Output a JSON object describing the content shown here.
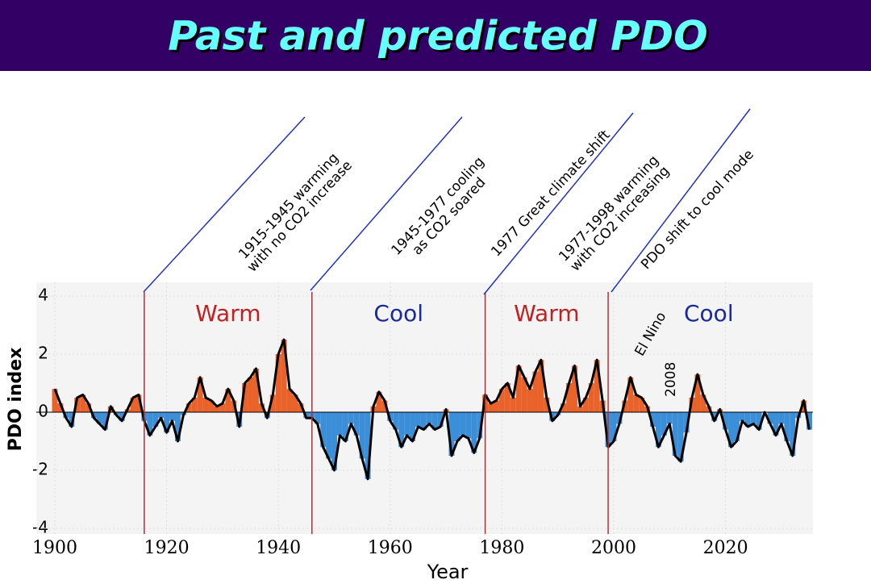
{
  "slide_title": "Past and predicted PDO",
  "chart_data": {
    "type": "bar",
    "ylabel": "PDO index",
    "xlabel": "Year",
    "x": [
      1900,
      1901,
      1902,
      1903,
      1904,
      1905,
      1906,
      1907,
      1908,
      1909,
      1910,
      1911,
      1912,
      1913,
      1914,
      1915,
      1916,
      1917,
      1918,
      1919,
      1920,
      1921,
      1922,
      1923,
      1924,
      1925,
      1926,
      1927,
      1928,
      1929,
      1930,
      1931,
      1932,
      1933,
      1934,
      1935,
      1936,
      1937,
      1938,
      1939,
      1940,
      1941,
      1942,
      1943,
      1944,
      1945,
      1946,
      1947,
      1948,
      1949,
      1950,
      1951,
      1952,
      1953,
      1954,
      1955,
      1956,
      1957,
      1958,
      1959,
      1960,
      1961,
      1962,
      1963,
      1964,
      1965,
      1966,
      1967,
      1968,
      1969,
      1970,
      1971,
      1972,
      1973,
      1974,
      1975,
      1976,
      1977,
      1978,
      1979,
      1980,
      1981,
      1982,
      1983,
      1984,
      1985,
      1986,
      1987,
      1988,
      1989,
      1990,
      1991,
      1992,
      1993,
      1994,
      1995,
      1996,
      1997,
      1998,
      1999,
      2000,
      2001,
      2002,
      2003,
      2004,
      2005,
      2006,
      2007,
      2008,
      2009,
      2010,
      2011,
      2012,
      2013,
      2014,
      2015,
      2016,
      2017,
      2018,
      2019,
      2020,
      2021,
      2022,
      2023,
      2024,
      2025,
      2026,
      2027,
      2028,
      2029,
      2030,
      2031,
      2032,
      2033,
      2034,
      2035
    ],
    "values": [
      0.8,
      0.3,
      -0.2,
      -0.5,
      0.5,
      0.6,
      0.3,
      -0.2,
      -0.4,
      -0.6,
      0.2,
      -0.1,
      -0.3,
      0.1,
      0.5,
      0.6,
      -0.3,
      -0.8,
      -0.5,
      -0.2,
      -0.7,
      -0.3,
      -1.0,
      -0.1,
      0.3,
      0.5,
      1.2,
      0.5,
      0.4,
      0.2,
      0.3,
      0.8,
      0.4,
      -0.5,
      1.0,
      1.2,
      1.5,
      0.3,
      -0.2,
      0.6,
      2.0,
      2.5,
      0.8,
      0.6,
      0.3,
      -0.2,
      -0.2,
      -0.4,
      -1.2,
      -1.6,
      -2.0,
      -0.8,
      -1.0,
      -0.4,
      -0.8,
      -1.6,
      -2.3,
      0.2,
      0.7,
      0.4,
      -0.3,
      -0.6,
      -1.2,
      -0.8,
      -1.0,
      -0.5,
      -0.6,
      -0.4,
      -0.6,
      -0.5,
      0.1,
      -1.5,
      -1.0,
      -0.8,
      -0.9,
      -1.4,
      -0.9,
      0.6,
      0.3,
      0.4,
      0.8,
      1.0,
      0.5,
      1.6,
      1.2,
      0.8,
      1.4,
      1.8,
      0.5,
      -0.3,
      -0.1,
      0.3,
      1.0,
      1.6,
      0.2,
      0.5,
      1.0,
      1.8,
      0.4,
      -1.2,
      -1.0,
      -0.4,
      0.4,
      1.2,
      0.6,
      0.5,
      0.2,
      -0.5,
      -1.2,
      -0.8,
      -0.4,
      -1.5,
      -1.7,
      -0.7,
      0.5,
      1.3,
      0.6,
      0.2,
      -0.3,
      0.1,
      -0.6,
      -1.2,
      -1.0,
      -0.3,
      -0.5,
      -0.4,
      -0.6,
      0.0,
      -0.4,
      -0.8,
      -0.4,
      -1.0,
      -1.5,
      -0.2,
      0.4,
      -0.6
    ],
    "positive_color": "#e8622a",
    "negative_color": "#3a8fd8",
    "line_color": "#000000",
    "xlim": [
      1900,
      2035
    ],
    "ylim": [
      -4,
      4
    ],
    "xticks": [
      1900,
      1920,
      1940,
      1960,
      1980,
      2000,
      2020
    ],
    "yticks": [
      4,
      2,
      0,
      -2,
      -4
    ],
    "regime_shifts": [
      1916,
      1946,
      1977,
      1999
    ],
    "phases": [
      "Warm",
      "Cool",
      "Warm",
      "Cool"
    ],
    "notes": [
      "1915-1945 warming\nwith no CO2 increase",
      "1945-1977 cooling\nas CO2 soared",
      "1977 Great climate shift",
      "1977-1998 warming\nwith CO2 increasing",
      "PDO shift to cool mode"
    ],
    "event_labels": [
      "El Nino",
      "2008"
    ]
  }
}
